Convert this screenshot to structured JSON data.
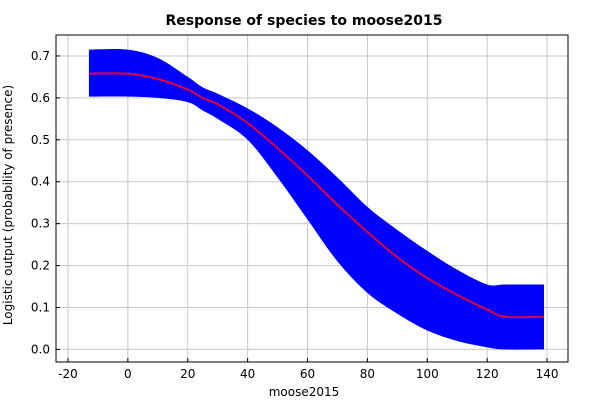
{
  "chart_data": {
    "type": "area",
    "title": "Response of species to moose2015",
    "xlabel": "moose2015",
    "ylabel": "Logistic output (probability of presence)",
    "xlim": [
      -24,
      147
    ],
    "ylim": [
      -0.03,
      0.75
    ],
    "xticks": [
      -20,
      0,
      20,
      40,
      60,
      80,
      100,
      120,
      140
    ],
    "yticks": [
      0.0,
      0.1,
      0.2,
      0.3,
      0.4,
      0.5,
      0.6,
      0.7
    ],
    "grid": true,
    "colors": {
      "band": "#0000ff",
      "line": "#e0003a",
      "grid": "#c8c8c8",
      "axis": "#000000"
    },
    "series": [
      {
        "role": "upper-bound",
        "x": [
          -13,
          0,
          10,
          20,
          25,
          30,
          40,
          50,
          60,
          70,
          80,
          90,
          100,
          110,
          120,
          126,
          139
        ],
        "y": [
          0.715,
          0.715,
          0.695,
          0.65,
          0.625,
          0.61,
          0.575,
          0.53,
          0.475,
          0.41,
          0.34,
          0.285,
          0.235,
          0.19,
          0.155,
          0.155,
          0.155
        ]
      },
      {
        "role": "mean",
        "x": [
          -13,
          0,
          10,
          20,
          25,
          30,
          40,
          50,
          60,
          70,
          80,
          90,
          100,
          110,
          120,
          126,
          139
        ],
        "y": [
          0.658,
          0.658,
          0.645,
          0.62,
          0.6,
          0.585,
          0.54,
          0.48,
          0.415,
          0.345,
          0.28,
          0.22,
          0.17,
          0.13,
          0.095,
          0.078,
          0.078
        ]
      },
      {
        "role": "lower-bound",
        "x": [
          -13,
          0,
          10,
          20,
          25,
          30,
          40,
          50,
          60,
          70,
          80,
          90,
          100,
          110,
          120,
          126,
          139
        ],
        "y": [
          0.603,
          0.603,
          0.6,
          0.59,
          0.57,
          0.55,
          0.5,
          0.41,
          0.31,
          0.21,
          0.135,
          0.085,
          0.045,
          0.02,
          0.005,
          0.0,
          0.0
        ]
      }
    ]
  }
}
